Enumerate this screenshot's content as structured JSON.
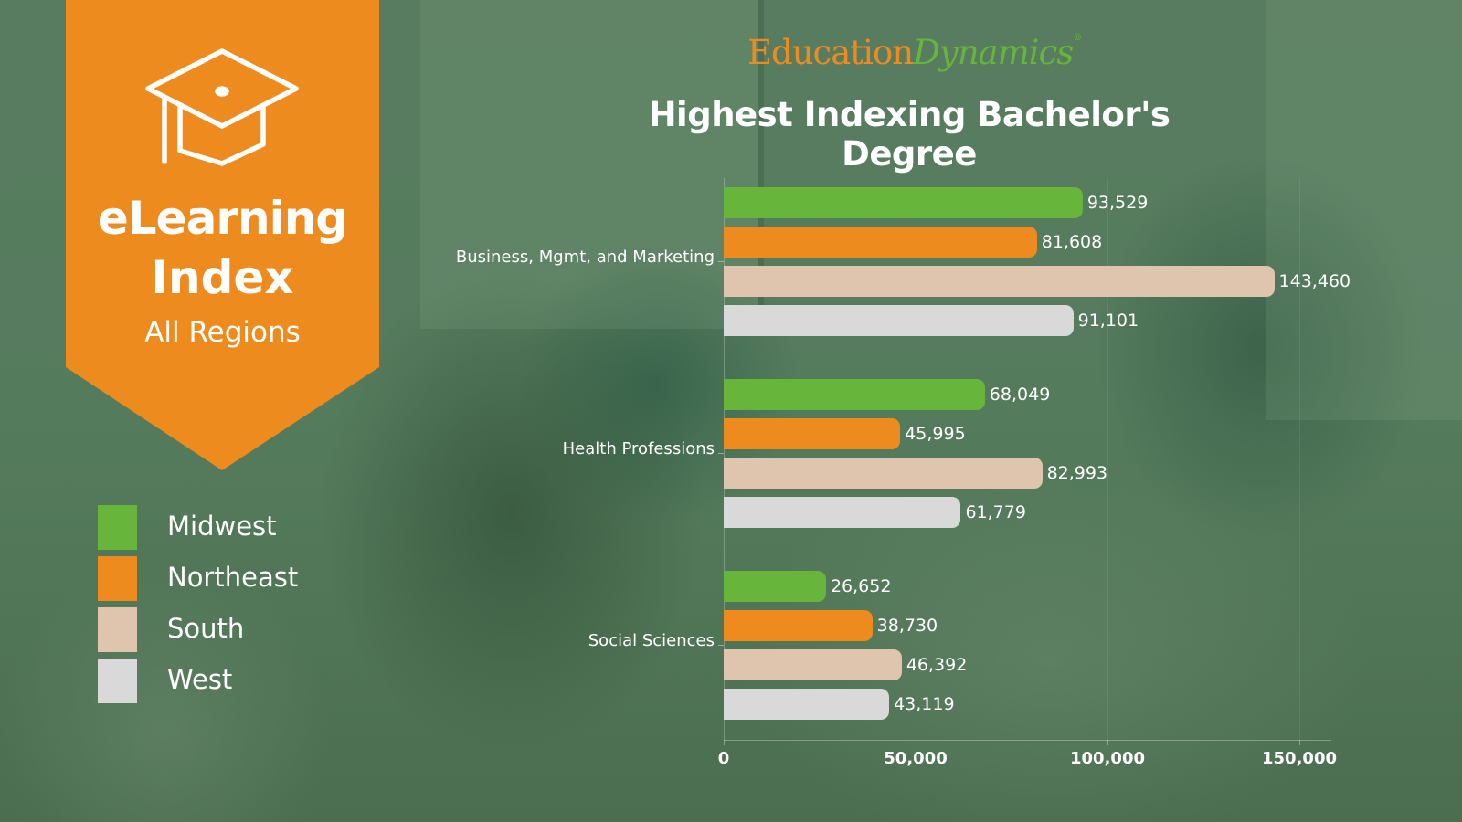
{
  "banner": {
    "icon": "graduation-cap-icon",
    "title_line1": "eLearning",
    "title_line2": "Index",
    "subtitle": "All Regions",
    "color": "#ee8b1e"
  },
  "logo": {
    "part1": "Education",
    "part2": "Dynamics",
    "mark": "®",
    "color1": "#ee8b1e",
    "color2": "#67b53a"
  },
  "legend": [
    {
      "label": "Midwest",
      "color": "#67b53a"
    },
    {
      "label": "Northeast",
      "color": "#ee8b1e"
    },
    {
      "label": "South",
      "color": "#dfc5ae"
    },
    {
      "label": "West",
      "color": "#d9d9d9"
    }
  ],
  "chart_data": {
    "type": "bar",
    "orientation": "horizontal",
    "title": "Highest Indexing Bachelor's Degree",
    "xlabel": "",
    "ylabel": "",
    "categories": [
      "Business, Mgmt, and Marketing",
      "Health Professions",
      "Social Sciences"
    ],
    "series": [
      {
        "name": "Midwest",
        "color": "#67b53a",
        "values": [
          93529,
          68049,
          26652
        ],
        "labels": [
          "93,529",
          "68,049",
          "26,652"
        ]
      },
      {
        "name": "Northeast",
        "color": "#ee8b1e",
        "values": [
          81608,
          45995,
          38730
        ],
        "labels": [
          "81,608",
          "45,995",
          "38,730"
        ]
      },
      {
        "name": "South",
        "color": "#dfc5ae",
        "values": [
          143460,
          82993,
          46392
        ],
        "labels": [
          "143,460",
          "82,993",
          "46,392"
        ]
      },
      {
        "name": "West",
        "color": "#d9d9d9",
        "values": [
          91101,
          61779,
          43119
        ],
        "labels": [
          "91,101",
          "61,779",
          "43,119"
        ]
      }
    ],
    "xticks": [
      0,
      50000,
      100000,
      150000
    ],
    "xtick_labels": [
      "0",
      "50,000",
      "100,000",
      "150,000"
    ],
    "xlim": [
      0,
      160000
    ],
    "grid": true,
    "legend_position": "left"
  }
}
